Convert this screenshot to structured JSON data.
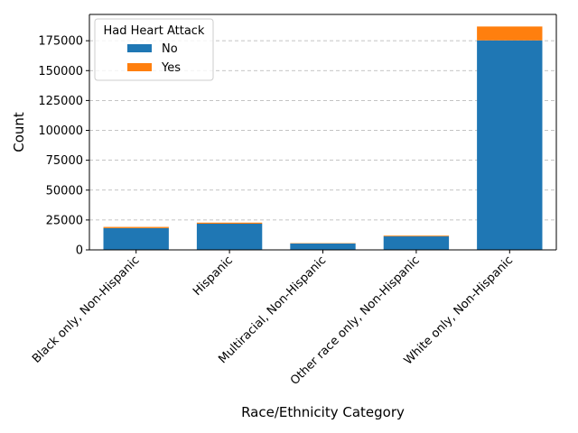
{
  "chart_data": {
    "type": "bar",
    "stacked": true,
    "title": "",
    "xlabel": "Race/Ethnicity Category",
    "ylabel": "Count",
    "categories": [
      "Black only, Non-Hispanic",
      "Hispanic",
      "Multiracial, Non-Hispanic",
      "Other race only, Non-Hispanic",
      "White only, Non-Hispanic"
    ],
    "series": [
      {
        "name": "No",
        "color": "#1f77b4",
        "values": [
          18200,
          21900,
          5300,
          11300,
          175300
        ]
      },
      {
        "name": "Yes",
        "color": "#ff7f0e",
        "values": [
          1000,
          900,
          300,
          600,
          11600
        ]
      }
    ],
    "ylim": [
      0,
      197000
    ],
    "yticks": [
      0,
      25000,
      50000,
      75000,
      100000,
      125000,
      150000,
      175000
    ],
    "grid": "y, dashed",
    "legend": {
      "title": "Had Heart Attack",
      "placement": "top-left"
    },
    "xtick_rotation_deg": 45
  }
}
